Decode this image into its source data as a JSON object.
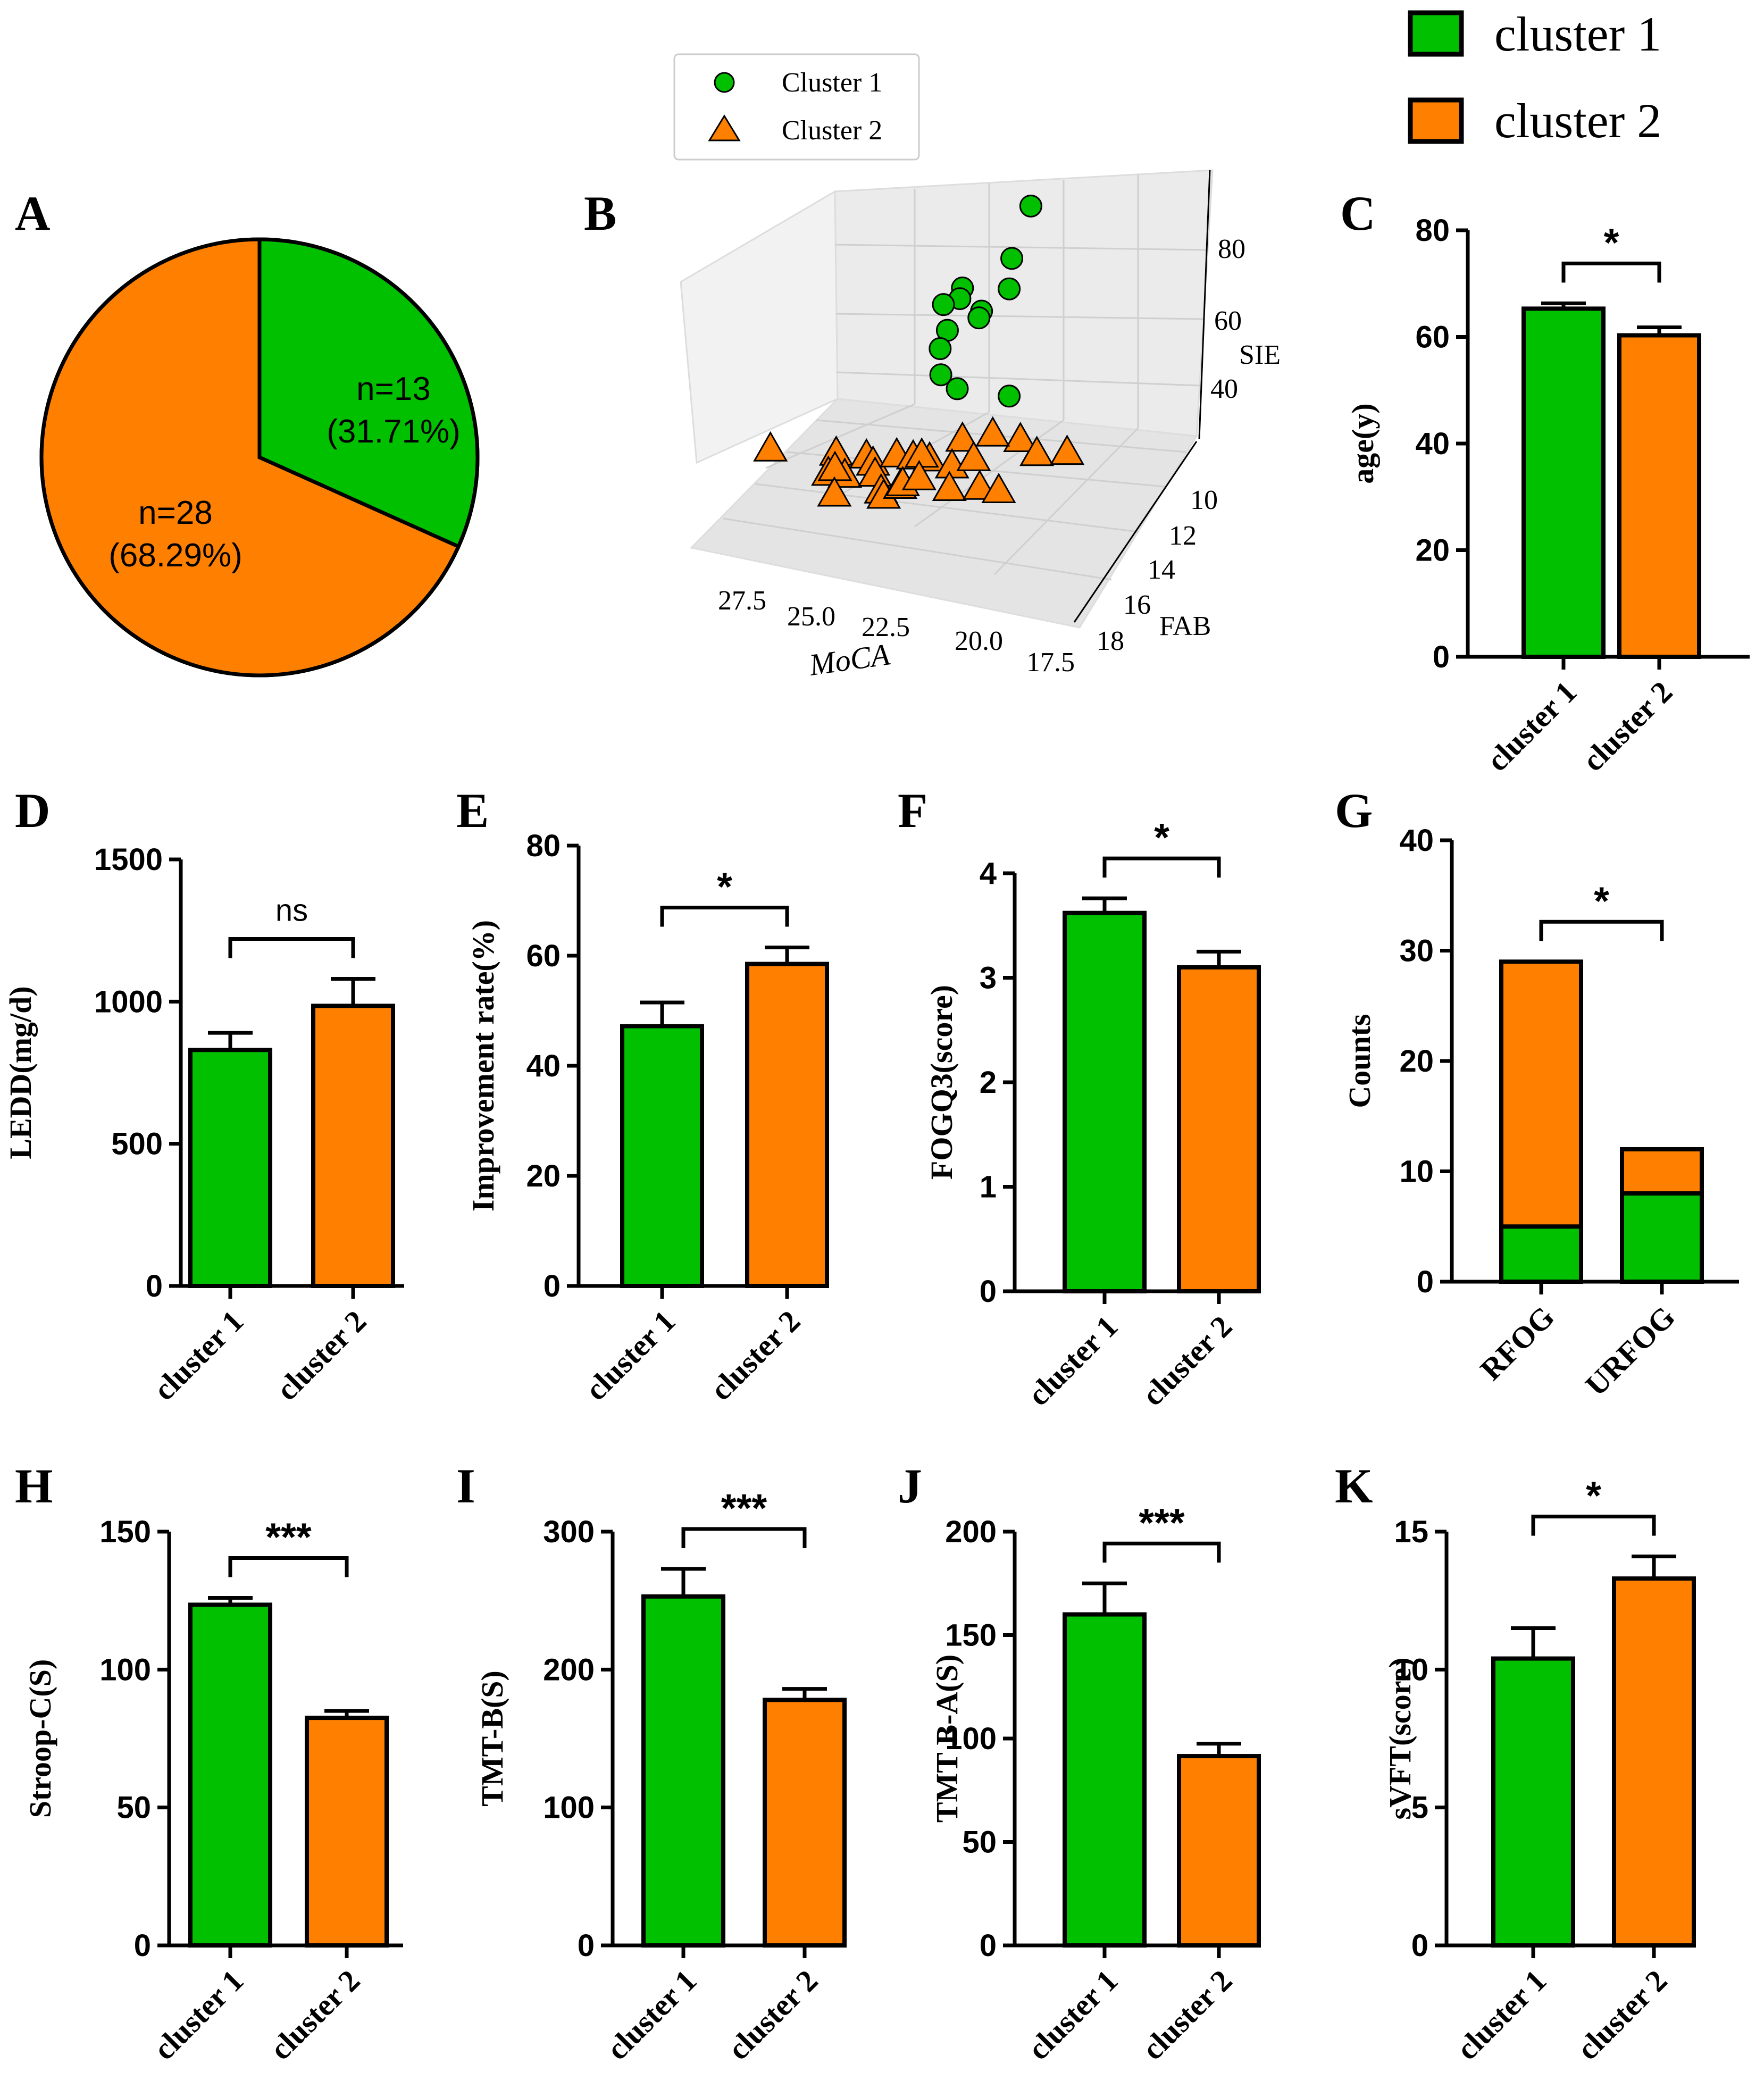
{
  "colors": {
    "cluster1": "#00c000",
    "cluster2": "#ff8000",
    "stroke": "#000000",
    "grid": "#cfcfcf"
  },
  "legend": {
    "items": [
      "cluster 1",
      "cluster 2"
    ]
  },
  "chart_data": [
    {
      "id": "A",
      "type": "pie",
      "title": "A",
      "slices": [
        {
          "label": "n=13",
          "pct": "(31.71%)",
          "value": 13,
          "series": "cluster 1"
        },
        {
          "label": "n=28",
          "pct": "(68.29%)",
          "value": 28,
          "series": "cluster 2"
        }
      ]
    },
    {
      "id": "B",
      "type": "scatter",
      "title": "B",
      "legend": [
        "Cluster 1",
        "Cluster 2"
      ],
      "xlabel": "MoCA",
      "ylabel": "FAB",
      "zlabel": "SIE",
      "xticks": [
        "27.5",
        "25.0",
        "22.5",
        "20.0",
        "17.5"
      ],
      "yticks": [
        "10",
        "12",
        "14",
        "16",
        "18"
      ],
      "zticks": [
        "40",
        "60",
        "80"
      ],
      "series": [
        {
          "name": "Cluster 1",
          "points": [
            [
              19,
              11,
              93
            ],
            [
              20,
              12,
              80
            ],
            [
              20.5,
              13,
              72
            ],
            [
              21.5,
              12,
              74
            ],
            [
              20.5,
              11,
              68
            ],
            [
              21,
              12,
              66
            ],
            [
              22,
              13,
              71
            ],
            [
              22.5,
              13,
              70
            ],
            [
              22.8,
              14,
              63
            ],
            [
              22.6,
              13,
              59
            ],
            [
              23,
              14,
              52
            ],
            [
              22.5,
              14,
              48
            ],
            [
              20.5,
              13,
              45
            ]
          ]
        },
        {
          "name": "Cluster 2",
          "points": [
            [
              26.5,
              10,
              40
            ],
            [
              24.5,
              10,
              37
            ],
            [
              24,
              11,
              35
            ],
            [
              23.8,
              11,
              33
            ],
            [
              23.5,
              12,
              34
            ],
            [
              23,
              12,
              33
            ],
            [
              22.5,
              12,
              32
            ],
            [
              21.5,
              12,
              36
            ],
            [
              26,
              13,
              31
            ],
            [
              25.5,
              13,
              30
            ],
            [
              25.8,
              13,
              32
            ],
            [
              25,
              14,
              29
            ],
            [
              24,
              15,
              32
            ],
            [
              23.5,
              16,
              28
            ],
            [
              22,
              14,
              30
            ],
            [
              21,
              15,
              33
            ],
            [
              20.5,
              15,
              29
            ],
            [
              20,
              16,
              28
            ],
            [
              27.5,
              17,
              24
            ],
            [
              26.5,
              18,
              23
            ],
            [
              26,
              17,
              22
            ],
            [
              25.5,
              17,
              24
            ],
            [
              25,
              16,
              25
            ],
            [
              24.5,
              16,
              26
            ],
            [
              24,
              17,
              22
            ],
            [
              23.5,
              18,
              21
            ],
            [
              21,
              13,
              36
            ],
            [
              22.5,
              17,
              20
            ]
          ]
        }
      ]
    },
    {
      "id": "C",
      "type": "bar",
      "title": "C",
      "ylabel": "age(y)",
      "ylim": [
        0,
        80
      ],
      "yticks": [
        "0",
        "20",
        "40",
        "60",
        "80"
      ],
      "categories": [
        "cluster 1",
        "cluster 2"
      ],
      "values": [
        65.3,
        60.3
      ],
      "errors": [
        1.0,
        1.5
      ],
      "sig": "*"
    },
    {
      "id": "D",
      "type": "bar",
      "title": "D",
      "ylabel": "LEDD(mg/d)",
      "ylim": [
        0,
        1500
      ],
      "yticks": [
        "0",
        "500",
        "1000",
        "1500"
      ],
      "categories": [
        "cluster 1",
        "cluster 2"
      ],
      "values": [
        830,
        985
      ],
      "errors": [
        60,
        95
      ],
      "sig": "ns"
    },
    {
      "id": "E",
      "type": "bar",
      "title": "E",
      "ylabel": "Improvement rate(%)",
      "ylim": [
        0,
        80
      ],
      "yticks": [
        "0",
        "20",
        "40",
        "60",
        "80"
      ],
      "categories": [
        "cluster 1",
        "cluster 2"
      ],
      "values": [
        47.2,
        58.5
      ],
      "errors": [
        4.3,
        3.0
      ],
      "sig": "*"
    },
    {
      "id": "F",
      "type": "bar",
      "title": "F",
      "ylabel": "FOGQ3(score)",
      "ylim": [
        0,
        4
      ],
      "yticks": [
        "0",
        "1",
        "2",
        "3",
        "4"
      ],
      "categories": [
        "cluster 1",
        "cluster 2"
      ],
      "values": [
        3.62,
        3.1
      ],
      "errors": [
        0.14,
        0.15
      ],
      "sig": "*"
    },
    {
      "id": "G",
      "type": "bar",
      "stacked": true,
      "title": "G",
      "ylabel": "Counts",
      "ylim": [
        0,
        40
      ],
      "yticks": [
        "0",
        "10",
        "20",
        "30",
        "40"
      ],
      "categories": [
        "RFOG",
        "URFOG"
      ],
      "series": [
        {
          "name": "cluster 1",
          "values": [
            5,
            8
          ]
        },
        {
          "name": "cluster 2",
          "values": [
            24,
            4
          ]
        }
      ],
      "sig": "*"
    },
    {
      "id": "H",
      "type": "bar",
      "title": "H",
      "ylabel": "Stroop-C(S)",
      "ylim": [
        0,
        150
      ],
      "yticks": [
        "0",
        "50",
        "100",
        "150"
      ],
      "categories": [
        "cluster 1",
        "cluster 2"
      ],
      "values": [
        123.5,
        82.5
      ],
      "errors": [
        2.5,
        2.5
      ],
      "sig": "***"
    },
    {
      "id": "I",
      "type": "bar",
      "title": "I",
      "ylabel": "TMT-B(S)",
      "ylim": [
        0,
        300
      ],
      "yticks": [
        "0",
        "100",
        "200",
        "300"
      ],
      "categories": [
        "cluster 1",
        "cluster 2"
      ],
      "values": [
        253,
        178
      ],
      "errors": [
        20,
        8
      ],
      "sig": "***"
    },
    {
      "id": "J",
      "type": "bar",
      "title": "J",
      "ylabel": "TMT B-A(S)",
      "ylim": [
        0,
        200
      ],
      "yticks": [
        "0",
        "50",
        "100",
        "150",
        "200"
      ],
      "categories": [
        "cluster 1",
        "cluster 2"
      ],
      "values": [
        160,
        91.5
      ],
      "errors": [
        15,
        6
      ],
      "sig": "***"
    },
    {
      "id": "K",
      "type": "bar",
      "title": "K",
      "ylabel": "sVFT(score)",
      "ylim": [
        0,
        15
      ],
      "yticks": [
        "0",
        "5",
        "10",
        "15"
      ],
      "categories": [
        "cluster 1",
        "cluster 2"
      ],
      "values": [
        10.4,
        13.3
      ],
      "errors": [
        1.1,
        0.8
      ],
      "sig": "*"
    }
  ]
}
